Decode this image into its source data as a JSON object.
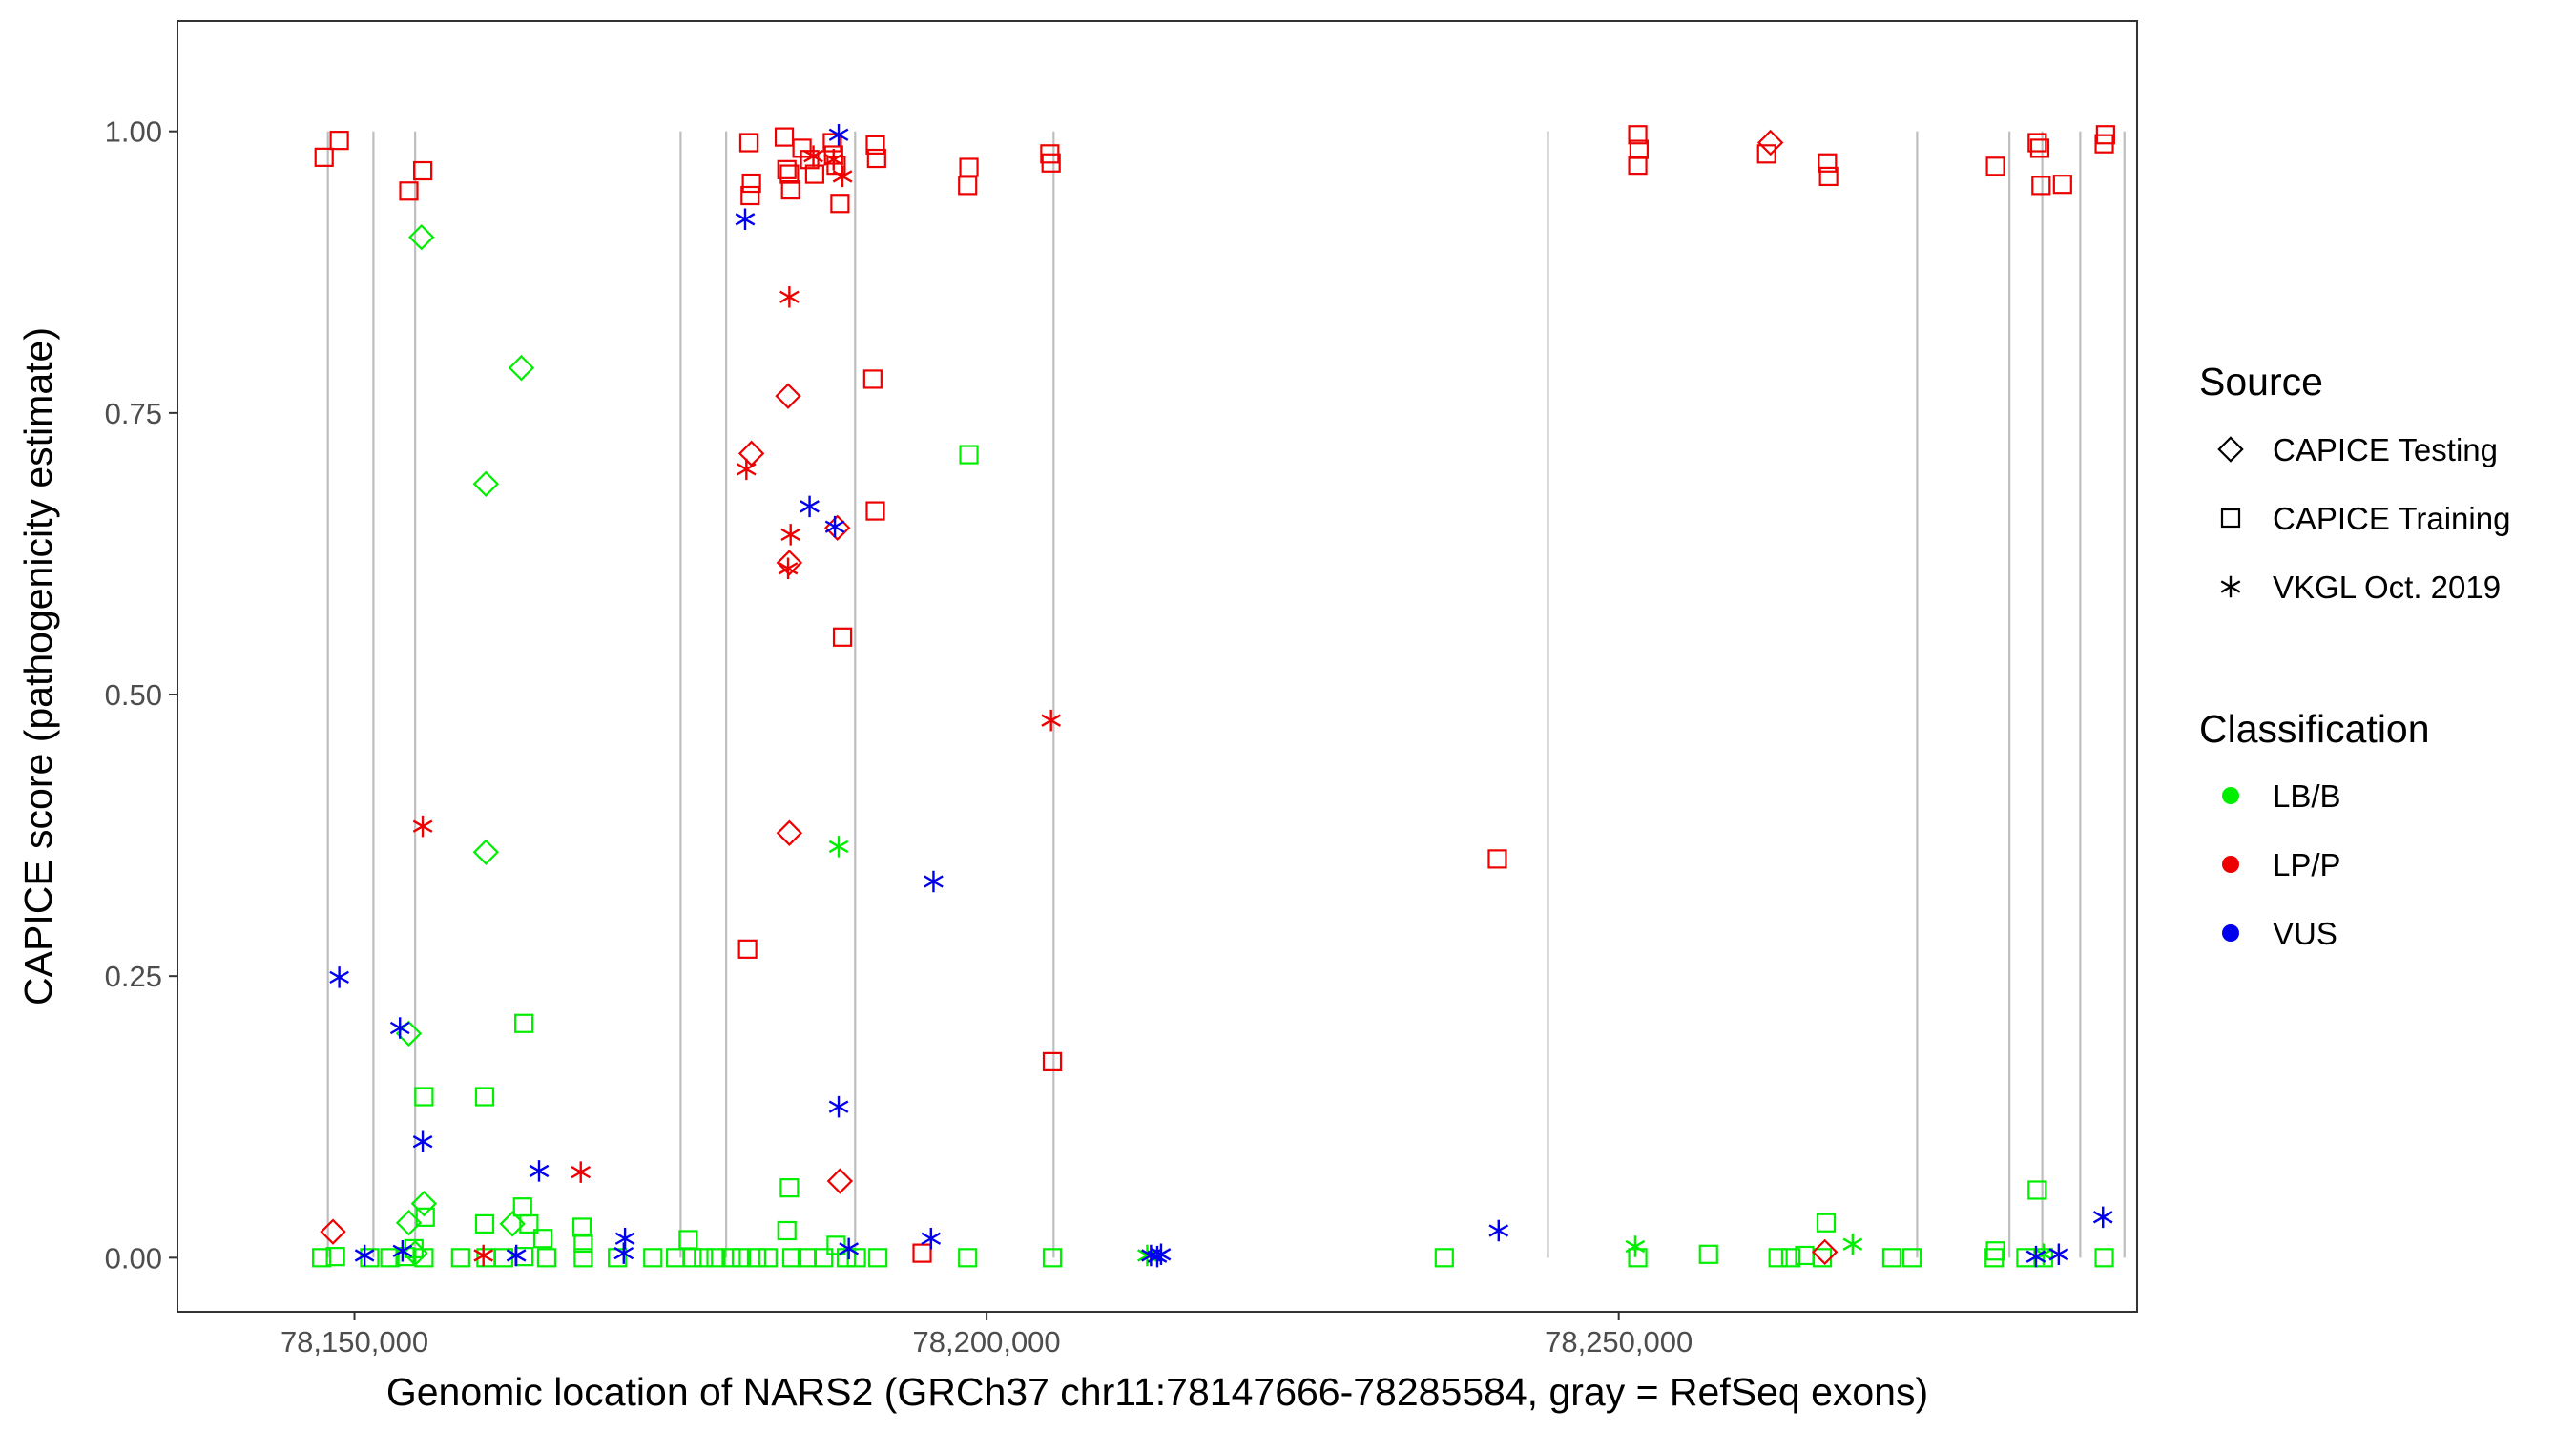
{
  "chart_data": {
    "type": "scatter",
    "xlabel": "Genomic location of NARS2 (GRCh37 chr11:78147666-78285584, gray = RefSeq exons)",
    "ylabel": "CAPICE score (pathogenicity estimate)",
    "xlim": [
      78136000,
      78291000
    ],
    "ylim": [
      -0.048,
      1.098
    ],
    "x_ticks": [
      78150000,
      78200000,
      78250000
    ],
    "x_tick_labels": [
      "78,150,000",
      "78,200,000",
      "78,250,000"
    ],
    "y_ticks": [
      0,
      0.25,
      0.5,
      0.75,
      1
    ],
    "y_tick_labels": [
      "0.00",
      "0.25",
      "0.50",
      "0.75",
      "1.00"
    ],
    "grid": false,
    "exon_positions": [
      78147900,
      78151500,
      78154800,
      78175800,
      78179400,
      78189600,
      78205300,
      78244400,
      78273600,
      78280900,
      78283500,
      78286500,
      78290000
    ],
    "legend_source": {
      "title": "Source",
      "entries": [
        {
          "label": "CAPICE Testing",
          "shape": "diamond"
        },
        {
          "label": "CAPICE Training",
          "shape": "square"
        },
        {
          "label": "VKGL Oct. 2019",
          "shape": "asterisk"
        }
      ]
    },
    "legend_classification": {
      "title": "Classification",
      "entries": [
        {
          "label": "LB/B",
          "color": "#00ee00"
        },
        {
          "label": "LP/P",
          "color": "#ee0000"
        },
        {
          "label": "VUS",
          "color": "#0000ee"
        }
      ]
    },
    "colors": {
      "LB/B": "#00ee00",
      "LP/P": "#ee0000",
      "VUS": "#0000ee"
    },
    "points": [
      [
        78147600,
        0.977,
        "square",
        "LP/P"
      ],
      [
        78148800,
        0.992,
        "square",
        "LP/P"
      ],
      [
        78154300,
        0.947,
        "square",
        "LP/P"
      ],
      [
        78155400,
        0.965,
        "square",
        "LP/P"
      ],
      [
        78181200,
        0.99,
        "square",
        "LP/P"
      ],
      [
        78181400,
        0.954,
        "square",
        "LP/P"
      ],
      [
        78181300,
        0.943,
        "square",
        "LP/P"
      ],
      [
        78184000,
        0.995,
        "square",
        "LP/P"
      ],
      [
        78184200,
        0.966,
        "square",
        "LP/P"
      ],
      [
        78184400,
        0.962,
        "square",
        "LP/P"
      ],
      [
        78184500,
        0.948,
        "square",
        "LP/P"
      ],
      [
        78185400,
        0.985,
        "square",
        "LP/P"
      ],
      [
        78186000,
        0.975,
        "square",
        "LP/P"
      ],
      [
        78186400,
        0.962,
        "square",
        "LP/P"
      ],
      [
        78187800,
        0.99,
        "square",
        "LP/P"
      ],
      [
        78187900,
        0.979,
        "square",
        "LP/P"
      ],
      [
        78188100,
        0.97,
        "square",
        "LP/P"
      ],
      [
        78188400,
        0.936,
        "square",
        "LP/P"
      ],
      [
        78191200,
        0.988,
        "square",
        "LP/P"
      ],
      [
        78191300,
        0.976,
        "square",
        "LP/P"
      ],
      [
        78198600,
        0.968,
        "square",
        "LP/P"
      ],
      [
        78198500,
        0.952,
        "square",
        "LP/P"
      ],
      [
        78205000,
        0.98,
        "square",
        "LP/P"
      ],
      [
        78205100,
        0.972,
        "square",
        "LP/P"
      ],
      [
        78191000,
        0.78,
        "square",
        "LP/P"
      ],
      [
        78191200,
        0.663,
        "square",
        "LP/P"
      ],
      [
        78188600,
        0.551,
        "square",
        "LP/P"
      ],
      [
        78181100,
        0.274,
        "square",
        "LP/P"
      ],
      [
        78205200,
        0.174,
        "square",
        "LP/P"
      ],
      [
        78240400,
        0.354,
        "square",
        "LP/P"
      ],
      [
        78194900,
        0.004,
        "square",
        "LP/P"
      ],
      [
        78251500,
        0.997,
        "square",
        "LP/P"
      ],
      [
        78251600,
        0.984,
        "square",
        "LP/P"
      ],
      [
        78251500,
        0.97,
        "square",
        "LP/P"
      ],
      [
        78261700,
        0.98,
        "square",
        "LP/P"
      ],
      [
        78266500,
        0.972,
        "square",
        "LP/P"
      ],
      [
        78266600,
        0.96,
        "square",
        "LP/P"
      ],
      [
        78279800,
        0.969,
        "square",
        "LP/P"
      ],
      [
        78283100,
        0.99,
        "square",
        "LP/P"
      ],
      [
        78283300,
        0.985,
        "square",
        "LP/P"
      ],
      [
        78283400,
        0.952,
        "square",
        "LP/P"
      ],
      [
        78285100,
        0.953,
        "square",
        "LP/P"
      ],
      [
        78288500,
        0.997,
        "square",
        "LP/P"
      ],
      [
        78288400,
        0.989,
        "square",
        "LP/P"
      ],
      [
        78184400,
        0.853,
        "asterisk",
        "LP/P"
      ],
      [
        78181000,
        0.7,
        "asterisk",
        "LP/P"
      ],
      [
        78184500,
        0.642,
        "asterisk",
        "LP/P"
      ],
      [
        78184300,
        0.612,
        "asterisk",
        "LP/P"
      ],
      [
        78186300,
        0.978,
        "asterisk",
        "LP/P"
      ],
      [
        78187900,
        0.975,
        "asterisk",
        "LP/P"
      ],
      [
        78188600,
        0.96,
        "asterisk",
        "LP/P"
      ],
      [
        78205100,
        0.477,
        "asterisk",
        "LP/P"
      ],
      [
        78155400,
        0.383,
        "asterisk",
        "LP/P"
      ],
      [
        78167900,
        0.076,
        "asterisk",
        "LP/P"
      ],
      [
        78160200,
        0.002,
        "asterisk",
        "LP/P"
      ],
      [
        78188300,
        0.997,
        "asterisk",
        "VUS"
      ],
      [
        78180900,
        0.922,
        "asterisk",
        "VUS"
      ],
      [
        78186000,
        0.667,
        "asterisk",
        "VUS"
      ],
      [
        78188000,
        0.649,
        "asterisk",
        "VUS"
      ],
      [
        78195800,
        0.334,
        "asterisk",
        "VUS"
      ],
      [
        78148800,
        0.249,
        "asterisk",
        "VUS"
      ],
      [
        78153600,
        0.204,
        "asterisk",
        "VUS"
      ],
      [
        78155400,
        0.103,
        "asterisk",
        "VUS"
      ],
      [
        78164600,
        0.077,
        "asterisk",
        "VUS"
      ],
      [
        78188300,
        0.134,
        "asterisk",
        "VUS"
      ],
      [
        78195600,
        0.017,
        "asterisk",
        "VUS"
      ],
      [
        78240500,
        0.024,
        "asterisk",
        "VUS"
      ],
      [
        78288300,
        0.036,
        "asterisk",
        "VUS"
      ],
      [
        78171400,
        0.017,
        "asterisk",
        "VUS"
      ],
      [
        78150800,
        0.002,
        "asterisk",
        "VUS"
      ],
      [
        78153800,
        0.006,
        "asterisk",
        "VUS"
      ],
      [
        78162800,
        0.002,
        "asterisk",
        "VUS"
      ],
      [
        78171300,
        0.004,
        "asterisk",
        "VUS"
      ],
      [
        78189100,
        0.008,
        "asterisk",
        "VUS"
      ],
      [
        78213000,
        0.002,
        "asterisk",
        "VUS"
      ],
      [
        78213500,
        0.001,
        "asterisk",
        "VUS"
      ],
      [
        78213800,
        0.003,
        "asterisk",
        "VUS"
      ],
      [
        78283000,
        0.001,
        "asterisk",
        "VUS"
      ],
      [
        78284800,
        0.003,
        "asterisk",
        "VUS"
      ],
      [
        78188300,
        0.365,
        "asterisk",
        "LB/B"
      ],
      [
        78251300,
        0.01,
        "asterisk",
        "LB/B"
      ],
      [
        78268500,
        0.012,
        "asterisk",
        "LB/B"
      ],
      [
        78212700,
        0.002,
        "asterisk",
        "LB/B"
      ],
      [
        78283600,
        0.003,
        "asterisk",
        "LB/B"
      ],
      [
        78184300,
        0.765,
        "diamond",
        "LP/P"
      ],
      [
        78181400,
        0.714,
        "diamond",
        "LP/P"
      ],
      [
        78184400,
        0.617,
        "diamond",
        "LP/P"
      ],
      [
        78188200,
        0.648,
        "diamond",
        "LP/P"
      ],
      [
        78184400,
        0.377,
        "diamond",
        "LP/P"
      ],
      [
        78188400,
        0.068,
        "diamond",
        "LP/P"
      ],
      [
        78148300,
        0.023,
        "diamond",
        "LP/P"
      ],
      [
        78262000,
        0.99,
        "diamond",
        "LP/P"
      ],
      [
        78266300,
        0.005,
        "diamond",
        "LP/P"
      ],
      [
        78155300,
        0.906,
        "diamond",
        "LB/B"
      ],
      [
        78163200,
        0.79,
        "diamond",
        "LB/B"
      ],
      [
        78160400,
        0.687,
        "diamond",
        "LB/B"
      ],
      [
        78160400,
        0.36,
        "diamond",
        "LB/B"
      ],
      [
        78154300,
        0.199,
        "diamond",
        "LB/B"
      ],
      [
        78155500,
        0.048,
        "diamond",
        "LB/B"
      ],
      [
        78154300,
        0.031,
        "diamond",
        "LB/B"
      ],
      [
        78162500,
        0.03,
        "diamond",
        "LB/B"
      ],
      [
        78154800,
        0.004,
        "diamond",
        "LB/B"
      ],
      [
        78198600,
        0.713,
        "square",
        "LB/B"
      ],
      [
        78163400,
        0.208,
        "square",
        "LB/B"
      ],
      [
        78155500,
        0.143,
        "square",
        "LB/B"
      ],
      [
        78160300,
        0.143,
        "square",
        "LB/B"
      ],
      [
        78184400,
        0.062,
        "square",
        "LB/B"
      ],
      [
        78283100,
        0.06,
        "square",
        "LB/B"
      ],
      [
        78155600,
        0.036,
        "square",
        "LB/B"
      ],
      [
        78163300,
        0.045,
        "square",
        "LB/B"
      ],
      [
        78160300,
        0.03,
        "square",
        "LB/B"
      ],
      [
        78163800,
        0.03,
        "square",
        "LB/B"
      ],
      [
        78168000,
        0.027,
        "square",
        "LB/B"
      ],
      [
        78184200,
        0.024,
        "square",
        "LB/B"
      ],
      [
        78266400,
        0.031,
        "square",
        "LB/B"
      ],
      [
        78176400,
        0.016,
        "square",
        "LB/B"
      ],
      [
        78164900,
        0.017,
        "square",
        "LB/B"
      ],
      [
        78168100,
        0.013,
        "square",
        "LB/B"
      ],
      [
        78188100,
        0.011,
        "square",
        "LB/B"
      ],
      [
        78154700,
        0.008,
        "square",
        "LB/B"
      ],
      [
        78147400,
        0.0,
        "square",
        "LB/B"
      ],
      [
        78148500,
        0.001,
        "square",
        "LB/B"
      ],
      [
        78151200,
        0.0,
        "square",
        "LB/B"
      ],
      [
        78152800,
        0.0,
        "square",
        "LB/B"
      ],
      [
        78154000,
        0.001,
        "square",
        "LB/B"
      ],
      [
        78155500,
        0.0,
        "square",
        "LB/B"
      ],
      [
        78158400,
        0.0,
        "square",
        "LB/B"
      ],
      [
        78160400,
        0.0,
        "square",
        "LB/B"
      ],
      [
        78161800,
        0.0,
        "square",
        "LB/B"
      ],
      [
        78163400,
        0.001,
        "square",
        "LB/B"
      ],
      [
        78165200,
        0.0,
        "square",
        "LB/B"
      ],
      [
        78168100,
        0.0,
        "square",
        "LB/B"
      ],
      [
        78170800,
        0.0,
        "square",
        "LB/B"
      ],
      [
        78173600,
        0.0,
        "square",
        "LB/B"
      ],
      [
        78175400,
        0.0,
        "square",
        "LB/B"
      ],
      [
        78176700,
        0.0,
        "square",
        "LB/B"
      ],
      [
        78177600,
        0.0,
        "square",
        "LB/B"
      ],
      [
        78178600,
        0.0,
        "square",
        "LB/B"
      ],
      [
        78179800,
        0.0,
        "square",
        "LB/B"
      ],
      [
        78180600,
        0.0,
        "square",
        "LB/B"
      ],
      [
        78181800,
        0.0,
        "square",
        "LB/B"
      ],
      [
        78182700,
        0.0,
        "square",
        "LB/B"
      ],
      [
        78184600,
        0.0,
        "square",
        "LB/B"
      ],
      [
        78185800,
        0.0,
        "square",
        "LB/B"
      ],
      [
        78187100,
        0.0,
        "square",
        "LB/B"
      ],
      [
        78188900,
        0.0,
        "square",
        "LB/B"
      ],
      [
        78189700,
        0.0,
        "square",
        "LB/B"
      ],
      [
        78191400,
        0.0,
        "square",
        "LB/B"
      ],
      [
        78198500,
        0.0,
        "square",
        "LB/B"
      ],
      [
        78205200,
        0.0,
        "square",
        "LB/B"
      ],
      [
        78236200,
        0.0,
        "square",
        "LB/B"
      ],
      [
        78251500,
        0.0,
        "square",
        "LB/B"
      ],
      [
        78257100,
        0.003,
        "square",
        "LB/B"
      ],
      [
        78262600,
        0.0,
        "square",
        "LB/B"
      ],
      [
        78263600,
        0.0,
        "square",
        "LB/B"
      ],
      [
        78264700,
        0.002,
        "square",
        "LB/B"
      ],
      [
        78266100,
        0.0,
        "square",
        "LB/B"
      ],
      [
        78271600,
        0.0,
        "square",
        "LB/B"
      ],
      [
        78273200,
        0.0,
        "square",
        "LB/B"
      ],
      [
        78279700,
        0.0,
        "square",
        "LB/B"
      ],
      [
        78279800,
        0.006,
        "square",
        "LB/B"
      ],
      [
        78282200,
        0.0,
        "square",
        "LB/B"
      ],
      [
        78283600,
        0.0,
        "square",
        "LB/B"
      ],
      [
        78288400,
        0.0,
        "square",
        "LB/B"
      ]
    ]
  }
}
